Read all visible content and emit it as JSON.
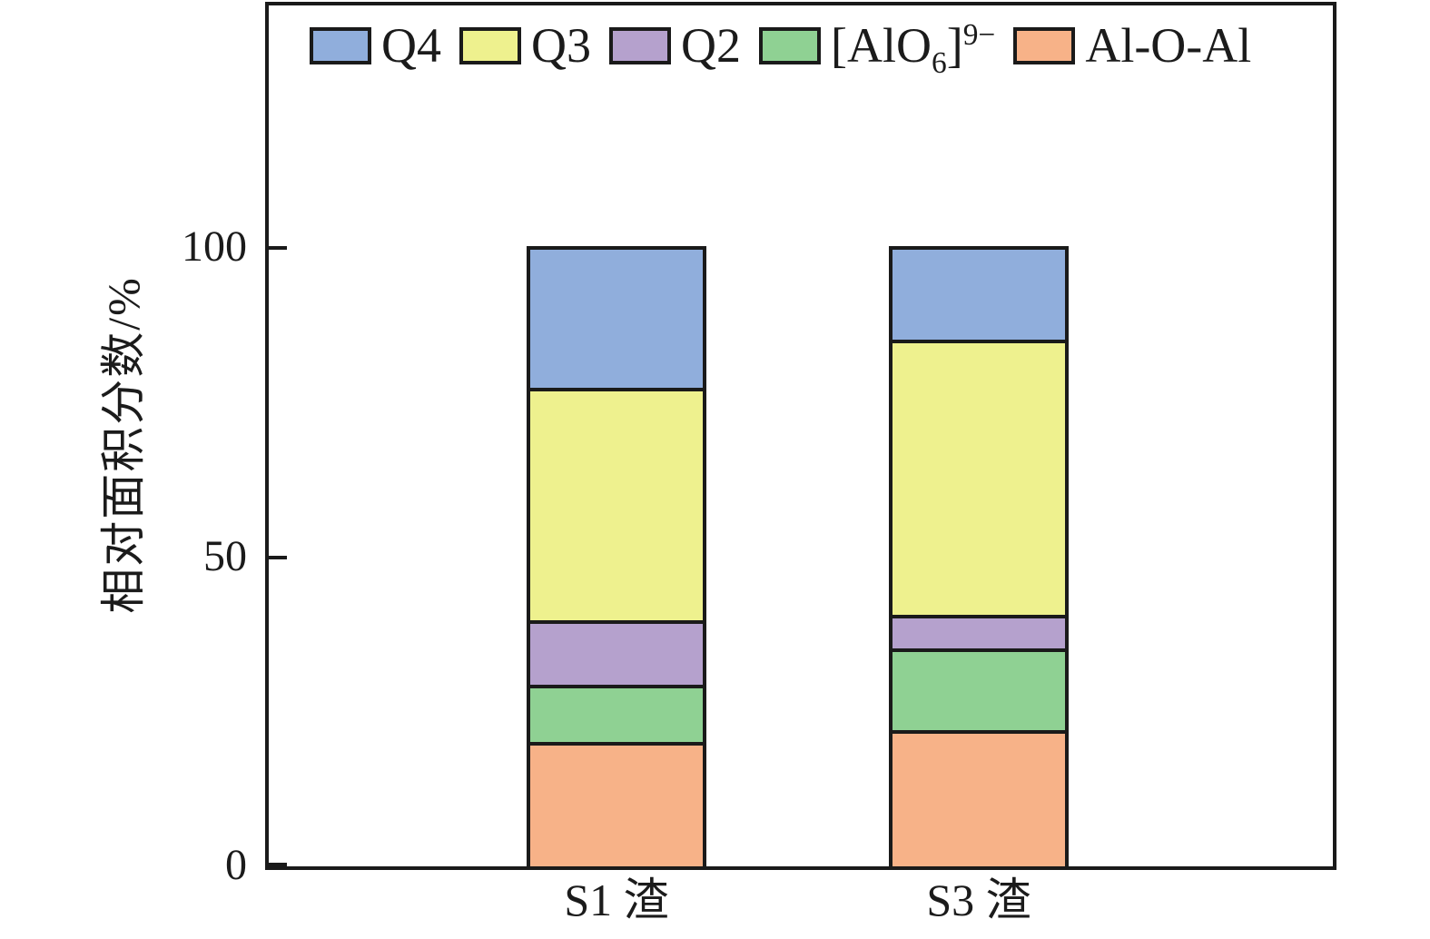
{
  "figure": {
    "background": "#ffffff",
    "frame_color": "#1a1a1a"
  },
  "legend": {
    "position": "top-inside",
    "items": [
      {
        "label": "Q4",
        "color": "#90AEDC"
      },
      {
        "label": "Q3",
        "color": "#EEF18E"
      },
      {
        "label": "Q2",
        "color": "#B5A1CD"
      },
      {
        "label": "[AlO6]9-",
        "color": "#8FD193",
        "parts": [
          [
            "t",
            "[AlO"
          ],
          [
            "sub",
            "6"
          ],
          [
            "t",
            "]"
          ],
          [
            "sup",
            "9−"
          ]
        ]
      },
      {
        "label": "Al-O-Al",
        "color": "#F7B288"
      }
    ]
  },
  "y_axis": {
    "title": "相对面积分数/%",
    "tick_labels": [
      "0",
      "50",
      "100"
    ]
  },
  "x_axis": {
    "categories": [
      "S1 渣",
      "S3 渣"
    ]
  },
  "chart_data": {
    "type": "bar",
    "stacked": true,
    "title": "",
    "xlabel": "",
    "ylabel": "相对面积分数/%",
    "categories": [
      "S1 渣",
      "S3 渣"
    ],
    "series": [
      {
        "name": "Al-O-Al",
        "color": "#F7B288",
        "values": [
          20,
          22
        ]
      },
      {
        "name": "[AlO6]9-",
        "color": "#8FD193",
        "values": [
          9,
          13
        ]
      },
      {
        "name": "Q2",
        "color": "#B5A1CD",
        "values": [
          10,
          5
        ]
      },
      {
        "name": "Q3",
        "color": "#EEF18E",
        "values": [
          38,
          45
        ]
      },
      {
        "name": "Q4",
        "color": "#90AEDC",
        "values": [
          23,
          15
        ]
      }
    ],
    "totals": [
      100,
      100
    ],
    "yticks": [
      0,
      50,
      100
    ],
    "ylim": [
      0,
      139
    ],
    "grid": false,
    "legend_order_left_to_right": [
      "Q4",
      "Q3",
      "Q2",
      "[AlO6]9-",
      "Al-O-Al"
    ],
    "bar_edge_color": "#1a1a1a"
  }
}
